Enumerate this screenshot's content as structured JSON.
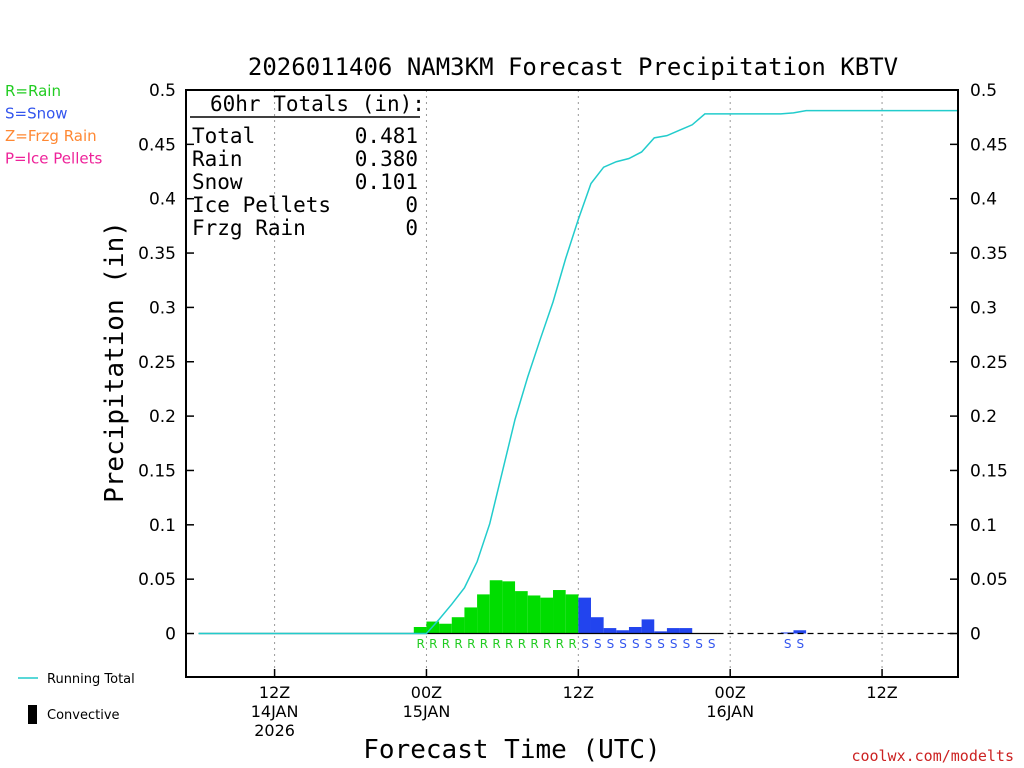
{
  "chart_data": {
    "type": "bar",
    "title": "2026011406 NAM3KM Forecast Precipitation KBTV",
    "xlabel": "Forecast Time (UTC)",
    "ylabel": "Precipitation (in)",
    "ylim": [
      -0.04,
      0.5
    ],
    "yticks": [
      0,
      0.05,
      0.1,
      0.15,
      0.2,
      0.25,
      0.3,
      0.35,
      0.4,
      0.45,
      0.5
    ],
    "ytick_labels": [
      "0",
      "0.05",
      "0.1",
      "0.15",
      "0.2",
      "0.25",
      "0.3",
      "0.35",
      "0.4",
      "0.45",
      "0.5"
    ],
    "x_unit": "forecast hour",
    "xlim": [
      -1,
      60
    ],
    "xticks": [
      {
        "hour": 6,
        "lines": [
          "12Z",
          "14JAN",
          "2026"
        ]
      },
      {
        "hour": 18,
        "lines": [
          "00Z",
          "15JAN"
        ]
      },
      {
        "hour": 30,
        "lines": [
          "12Z"
        ]
      },
      {
        "hour": 42,
        "lines": [
          "00Z",
          "16JAN"
        ]
      },
      {
        "hour": 54,
        "lines": [
          "12Z"
        ]
      }
    ],
    "grid": "vertical dotted at tick hours",
    "series": [
      {
        "name": "Hourly Precipitation",
        "kind": "bar",
        "data": [
          {
            "hour": 18,
            "value": 0.006,
            "ptype": "R"
          },
          {
            "hour": 19,
            "value": 0.011,
            "ptype": "R"
          },
          {
            "hour": 20,
            "value": 0.009,
            "ptype": "R"
          },
          {
            "hour": 21,
            "value": 0.015,
            "ptype": "R"
          },
          {
            "hour": 22,
            "value": 0.024,
            "ptype": "R"
          },
          {
            "hour": 23,
            "value": 0.036,
            "ptype": "R"
          },
          {
            "hour": 24,
            "value": 0.049,
            "ptype": "R"
          },
          {
            "hour": 25,
            "value": 0.048,
            "ptype": "R"
          },
          {
            "hour": 26,
            "value": 0.039,
            "ptype": "R"
          },
          {
            "hour": 27,
            "value": 0.035,
            "ptype": "R"
          },
          {
            "hour": 28,
            "value": 0.033,
            "ptype": "R"
          },
          {
            "hour": 29,
            "value": 0.04,
            "ptype": "R"
          },
          {
            "hour": 30,
            "value": 0.036,
            "ptype": "R"
          },
          {
            "hour": 31,
            "value": 0.033,
            "ptype": "S"
          },
          {
            "hour": 32,
            "value": 0.015,
            "ptype": "S"
          },
          {
            "hour": 33,
            "value": 0.005,
            "ptype": "S"
          },
          {
            "hour": 34,
            "value": 0.003,
            "ptype": "S"
          },
          {
            "hour": 35,
            "value": 0.006,
            "ptype": "S"
          },
          {
            "hour": 36,
            "value": 0.013,
            "ptype": "S"
          },
          {
            "hour": 37,
            "value": 0.002,
            "ptype": "S"
          },
          {
            "hour": 38,
            "value": 0.005,
            "ptype": "S"
          },
          {
            "hour": 39,
            "value": 0.005,
            "ptype": "S"
          },
          {
            "hour": 47,
            "value": 0.001,
            "ptype": "S"
          },
          {
            "hour": 48,
            "value": 0.003,
            "ptype": "S"
          }
        ]
      },
      {
        "name": "Running Total",
        "kind": "line",
        "color": "#22cccc",
        "points": [
          [
            0,
            0
          ],
          [
            18,
            0
          ],
          [
            19,
            0.013
          ],
          [
            20,
            0.027
          ],
          [
            21,
            0.042
          ],
          [
            22,
            0.066
          ],
          [
            23,
            0.101
          ],
          [
            24,
            0.149
          ],
          [
            25,
            0.197
          ],
          [
            26,
            0.236
          ],
          [
            27,
            0.271
          ],
          [
            28,
            0.305
          ],
          [
            29,
            0.345
          ],
          [
            30,
            0.381
          ],
          [
            31,
            0.414
          ],
          [
            32,
            0.429
          ],
          [
            33,
            0.434
          ],
          [
            34,
            0.437
          ],
          [
            35,
            0.443
          ],
          [
            36,
            0.456
          ],
          [
            37,
            0.458
          ],
          [
            38,
            0.463
          ],
          [
            39,
            0.468
          ],
          [
            40,
            0.478
          ],
          [
            41,
            0.478
          ],
          [
            46,
            0.478
          ],
          [
            47,
            0.479
          ],
          [
            48,
            0.481
          ],
          [
            60,
            0.481
          ]
        ]
      }
    ],
    "precip_colors": {
      "R": "#00dd00",
      "S": "#2244ee",
      "Z": "#ff9933",
      "P": "#ee2299"
    },
    "ptype_rows": [
      {
        "letter": "R",
        "from_hour": 18,
        "to_hour": 30
      },
      {
        "letter": "S",
        "from_hour": 31,
        "to_hour": 41
      },
      {
        "letter": "S",
        "from_hour": 47,
        "to_hour": 48
      }
    ],
    "totals_box": {
      "header": "60hr Totals (in):",
      "rows": [
        {
          "label": "Total",
          "value": "0.481"
        },
        {
          "label": "Rain",
          "value": "0.380"
        },
        {
          "label": "Snow",
          "value": "0.101"
        },
        {
          "label": "Ice Pellets",
          "value": "0"
        },
        {
          "label": "Frzg Rain",
          "value": "0"
        }
      ]
    },
    "precip_legend": [
      {
        "text": "R=Rain",
        "color": "#22cc22"
      },
      {
        "text": "S=Snow",
        "color": "#3355ee"
      },
      {
        "text": "Z=Frzg Rain",
        "color": "#ff8833"
      },
      {
        "text": "P=Ice Pellets",
        "color": "#ee2299"
      }
    ],
    "line_legend": [
      {
        "text": "Running Total",
        "symbol": "line",
        "color": "#22cccc"
      },
      {
        "text": "Convective",
        "symbol": "bar",
        "color": "#000000"
      }
    ]
  },
  "credit": {
    "text": "coolwx.com/modelts",
    "color": "#cc2222"
  }
}
